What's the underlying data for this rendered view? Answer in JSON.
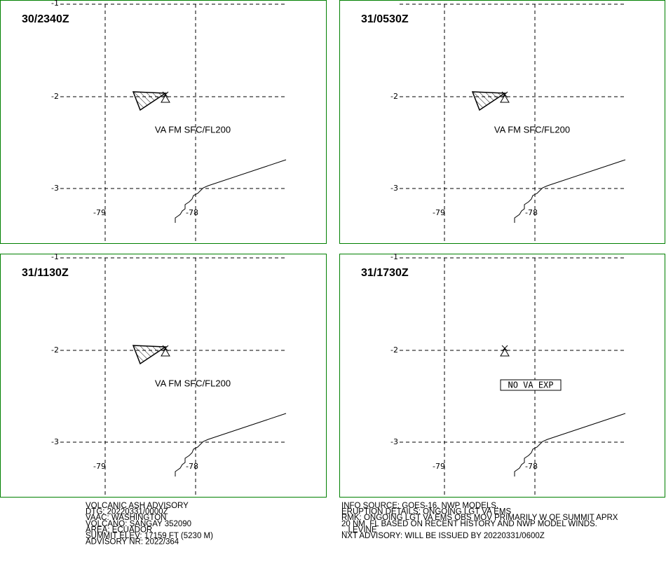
{
  "panels": [
    {
      "time": "30/2340Z",
      "label": "VA FM SFC/FL200"
    },
    {
      "time": "31/0530Z",
      "label": "VA FM SFC/FL200"
    },
    {
      "time": "31/1130Z",
      "label": "VA FM SFC/FL200"
    },
    {
      "time": "31/1730Z",
      "notice": "NO VA EXP"
    }
  ],
  "grid_labels": {
    "lat": [
      "-1",
      "-2",
      "-3"
    ],
    "lon": [
      "-79",
      "-78"
    ]
  },
  "footer": {
    "left": [
      "VOLCANIC ASH ADVISORY",
      "DTG: 20220331/0000Z",
      "VAAC: WASHINGTON",
      "VOLCANO: SANGAY 352090",
      "AREA: ECUADOR",
      "SUMMIT ELEV: 17159 FT (5230 M)",
      "ADVISORY NR: 2022/364"
    ],
    "right": [
      "INFO SOURCE: GOES-16. NWP MODELS.",
      "ERUPTION DETAILS: ONGOING LGT VA EMS",
      "RMK: ONGOING LGT VA EMS OBS MOV PRIMARILY W OF SUMMIT APRX",
      "20 NM. FL BASED ON RECENT HISTORY AND NWP MODEL WINDS.",
      "...LEVINE",
      "NXT ADVISORY: WILL BE ISSUED BY 20220331/0600Z"
    ]
  }
}
